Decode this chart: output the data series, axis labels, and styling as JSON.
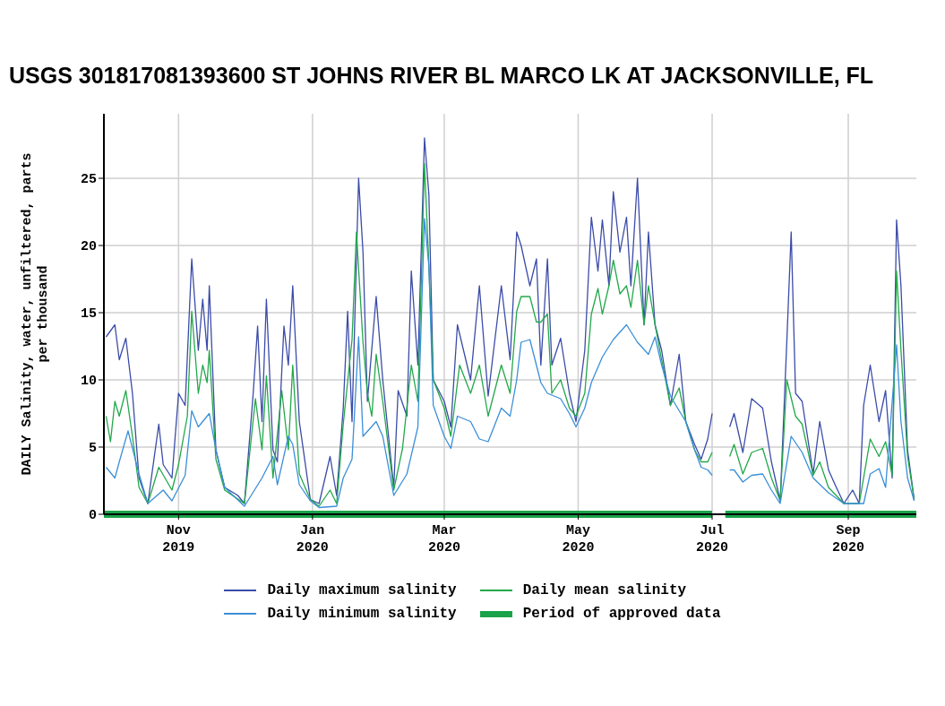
{
  "chart_data": {
    "type": "line",
    "title": "USGS 301817081393600 ST JOHNS RIVER BL MARCO LK AT JACKSONVILLE, FL",
    "ylabel": "DAILY Salinity, water, unfiltered, parts per thousand",
    "xlim": [
      "2019-09-28",
      "2020-10-02"
    ],
    "xticks": [
      {
        "value": "2019-11-01",
        "label": "Nov 2019"
      },
      {
        "value": "2020-01-01",
        "label": "Jan 2020"
      },
      {
        "value": "2020-03-01",
        "label": "Mar 2020"
      },
      {
        "value": "2020-05-01",
        "label": "May 2020"
      },
      {
        "value": "2020-07-01",
        "label": "Jul 2020"
      },
      {
        "value": "2020-09-01",
        "label": "Sep 2020"
      }
    ],
    "ylim": [
      0,
      29.8
    ],
    "yticks": [
      0,
      5,
      10,
      15,
      20,
      25
    ],
    "grid": true,
    "legend": "bottom",
    "series": [
      {
        "name": "Daily maximum salinity",
        "color": "#3b4ba8",
        "x": [
          "2019-09-29",
          "2019-10-03",
          "2019-10-05",
          "2019-10-08",
          "2019-10-11",
          "2019-10-14",
          "2019-10-18",
          "2019-10-23",
          "2019-10-25",
          "2019-10-29",
          "2019-11-01",
          "2019-11-04",
          "2019-11-07",
          "2019-11-10",
          "2019-11-12",
          "2019-11-14",
          "2019-11-15",
          "2019-11-18",
          "2019-11-22",
          "2019-11-28",
          "2019-12-01",
          "2019-12-05",
          "2019-12-07",
          "2019-12-09",
          "2019-12-11",
          "2019-12-14",
          "2019-12-16",
          "2019-12-19",
          "2019-12-21",
          "2019-12-23",
          "2019-12-26",
          "2019-12-31",
          "2020-01-04",
          "2020-01-09",
          "2020-01-12",
          "2020-01-15",
          "2020-01-17",
          "2020-01-19",
          "2020-01-22",
          "2020-01-24",
          "2020-01-26",
          "2020-01-30",
          "2020-02-02",
          "2020-02-07",
          "2020-02-09",
          "2020-02-13",
          "2020-02-15",
          "2020-02-18",
          "2020-02-21",
          "2020-02-23",
          "2020-02-25",
          "2020-03-01",
          "2020-03-04",
          "2020-03-07",
          "2020-03-13",
          "2020-03-17",
          "2020-03-21",
          "2020-03-27",
          "2020-03-31",
          "2020-04-03",
          "2020-04-05",
          "2020-04-09",
          "2020-04-12",
          "2020-04-14",
          "2020-04-17",
          "2020-04-19",
          "2020-04-23",
          "2020-04-27",
          "2020-04-30",
          "2020-05-04",
          "2020-05-07",
          "2020-05-10",
          "2020-05-12",
          "2020-05-15",
          "2020-05-17",
          "2020-05-20",
          "2020-05-23",
          "2020-05-25",
          "2020-05-28",
          "2020-05-31",
          "2020-06-02",
          "2020-06-05",
          "2020-06-08",
          "2020-06-12",
          "2020-06-16",
          "2020-06-19",
          "2020-06-23",
          "2020-06-26",
          "2020-06-29",
          "2020-07-01",
          "2020-07-04",
          "2020-07-09",
          "2020-07-11",
          "2020-07-15",
          "2020-07-19",
          "2020-07-24",
          "2020-07-28",
          "2020-08-01",
          "2020-08-04",
          "2020-08-06",
          "2020-08-08",
          "2020-08-11",
          "2020-08-16",
          "2020-08-19",
          "2020-08-23",
          "2020-08-26",
          "2020-08-30",
          "2020-09-03",
          "2020-09-06",
          "2020-09-08",
          "2020-09-11",
          "2020-09-15",
          "2020-09-18",
          "2020-09-21",
          "2020-09-23",
          "2020-09-25",
          "2020-09-28",
          "2020-10-01"
        ],
        "values": [
          13.2,
          14.1,
          11.5,
          13.1,
          9,
          2.7,
          0.8,
          6.7,
          3.7,
          2.7,
          9,
          8.1,
          19,
          12.2,
          16,
          12.2,
          17,
          4.8,
          2,
          1.4,
          0.8,
          9,
          14,
          6.9,
          16,
          4.8,
          3.9,
          14,
          11.1,
          17,
          6.9,
          1.1,
          0.8,
          4.3,
          1.4,
          7.9,
          15.1,
          6.9,
          25,
          19.5,
          8.4,
          16.2,
          10,
          2,
          9.2,
          7.3,
          18.1,
          11.1,
          28,
          23.8,
          10,
          8.4,
          6.5,
          14.1,
          10,
          17,
          8.8,
          17,
          11.5,
          21,
          20,
          17,
          19,
          11.1,
          19,
          11.1,
          13.1,
          9,
          6.9,
          12.2,
          22.1,
          18.1,
          21.9,
          17,
          24,
          19.5,
          22.1,
          17,
          25,
          14.1,
          21,
          14.1,
          12.2,
          8.1,
          11.9,
          6.9,
          5.2,
          4.1,
          5.6,
          7.5,
          null,
          6.5,
          7.5,
          4.6,
          8.6,
          7.9,
          3.9,
          1,
          12.8,
          21,
          9,
          8.4,
          3,
          6.9,
          3.3,
          2.2,
          0.8,
          1.8,
          0.8,
          8.1,
          11.1,
          6.9,
          9.2,
          2.7,
          21.9,
          17,
          4.8,
          1.1
        ]
      },
      {
        "name": "Daily mean salinity",
        "color": "#22a84a",
        "x": [
          "2019-09-29",
          "2019-10-01",
          "2019-10-03",
          "2019-10-05",
          "2019-10-08",
          "2019-10-11",
          "2019-10-14",
          "2019-10-18",
          "2019-10-23",
          "2019-10-29",
          "2019-11-01",
          "2019-11-05",
          "2019-11-07",
          "2019-11-10",
          "2019-11-12",
          "2019-11-14",
          "2019-11-15",
          "2019-11-18",
          "2019-11-22",
          "2019-12-01",
          "2019-12-06",
          "2019-12-09",
          "2019-12-11",
          "2019-12-14",
          "2019-12-18",
          "2019-12-21",
          "2019-12-23",
          "2019-12-26",
          "2019-12-31",
          "2020-01-04",
          "2020-01-09",
          "2020-01-12",
          "2020-01-15",
          "2020-01-19",
          "2020-01-21",
          "2020-01-24",
          "2020-01-26",
          "2020-01-28",
          "2020-01-30",
          "2020-02-02",
          "2020-02-07",
          "2020-02-11",
          "2020-02-15",
          "2020-02-18",
          "2020-02-21",
          "2020-02-23",
          "2020-02-25",
          "2020-03-01",
          "2020-03-04",
          "2020-03-08",
          "2020-03-13",
          "2020-03-17",
          "2020-03-21",
          "2020-03-27",
          "2020-03-31",
          "2020-04-03",
          "2020-04-05",
          "2020-04-09",
          "2020-04-12",
          "2020-04-14",
          "2020-04-17",
          "2020-04-19",
          "2020-04-23",
          "2020-04-27",
          "2020-04-30",
          "2020-05-04",
          "2020-05-07",
          "2020-05-10",
          "2020-05-12",
          "2020-05-15",
          "2020-05-17",
          "2020-05-20",
          "2020-05-23",
          "2020-05-25",
          "2020-05-28",
          "2020-05-31",
          "2020-06-02",
          "2020-06-05",
          "2020-06-08",
          "2020-06-12",
          "2020-06-16",
          "2020-06-19",
          "2020-06-23",
          "2020-06-26",
          "2020-06-29",
          "2020-07-01",
          "2020-07-04",
          "2020-07-09",
          "2020-07-11",
          "2020-07-15",
          "2020-07-19",
          "2020-07-24",
          "2020-07-28",
          "2020-08-01",
          "2020-08-04",
          "2020-08-08",
          "2020-08-11",
          "2020-08-16",
          "2020-08-19",
          "2020-08-23",
          "2020-08-30",
          "2020-09-06",
          "2020-09-11",
          "2020-09-15",
          "2020-09-18",
          "2020-09-21",
          "2020-09-23",
          "2020-09-25",
          "2020-09-28",
          "2020-10-01"
        ],
        "values": [
          7.3,
          5.4,
          8.4,
          7.3,
          9.2,
          5.8,
          2,
          0.8,
          3.5,
          1.8,
          3.7,
          7.3,
          15.1,
          9,
          11.1,
          9.8,
          12.2,
          4.1,
          1.8,
          0.8,
          8.6,
          4.8,
          10.3,
          2.7,
          9.2,
          4.8,
          11.1,
          3,
          1.1,
          0.6,
          1.8,
          0.8,
          6.7,
          13,
          21,
          12.8,
          9,
          7.3,
          11.9,
          8.4,
          1.8,
          4.9,
          11.1,
          8.4,
          26.1,
          18.5,
          10,
          7.9,
          5.8,
          11.1,
          9,
          11.1,
          7.3,
          11.1,
          9,
          15.1,
          16.2,
          16.2,
          14.3,
          14.3,
          14.9,
          9,
          10,
          7.9,
          7.3,
          9,
          14.9,
          16.8,
          14.9,
          17,
          18.9,
          16.4,
          17,
          15.4,
          18.9,
          14.1,
          17,
          14.1,
          11.5,
          8.1,
          9.4,
          6.9,
          4.8,
          3.9,
          3.9,
          4.6,
          null,
          4.3,
          5.2,
          3,
          4.6,
          4.9,
          2.7,
          1,
          10,
          7.3,
          6.7,
          2.9,
          3.9,
          2,
          0.8,
          0.8,
          5.6,
          4.3,
          5.4,
          2.9,
          18.1,
          12.2,
          4.3,
          1.1
        ]
      },
      {
        "name": "Daily minimum salinity",
        "color": "#3a8fd8",
        "x": [
          "2019-09-29",
          "2019-10-03",
          "2019-10-05",
          "2019-10-09",
          "2019-10-14",
          "2019-10-18",
          "2019-10-25",
          "2019-10-29",
          "2019-11-04",
          "2019-11-07",
          "2019-11-10",
          "2019-11-15",
          "2019-11-18",
          "2019-11-22",
          "2019-12-01",
          "2019-12-09",
          "2019-12-14",
          "2019-12-16",
          "2019-12-21",
          "2019-12-23",
          "2019-12-26",
          "2019-12-31",
          "2020-01-04",
          "2020-01-12",
          "2020-01-15",
          "2020-01-19",
          "2020-01-22",
          "2020-01-24",
          "2020-01-30",
          "2020-02-02",
          "2020-02-07",
          "2020-02-13",
          "2020-02-18",
          "2020-02-21",
          "2020-02-23",
          "2020-02-25",
          "2020-03-01",
          "2020-03-04",
          "2020-03-07",
          "2020-03-13",
          "2020-03-17",
          "2020-03-21",
          "2020-03-27",
          "2020-03-31",
          "2020-04-03",
          "2020-04-05",
          "2020-04-09",
          "2020-04-14",
          "2020-04-17",
          "2020-04-23",
          "2020-04-27",
          "2020-04-30",
          "2020-05-04",
          "2020-05-07",
          "2020-05-12",
          "2020-05-17",
          "2020-05-23",
          "2020-05-28",
          "2020-06-02",
          "2020-06-05",
          "2020-06-08",
          "2020-06-12",
          "2020-06-16",
          "2020-06-19",
          "2020-06-23",
          "2020-06-26",
          "2020-06-29",
          "2020-07-01",
          "2020-07-04",
          "2020-07-09",
          "2020-07-11",
          "2020-07-15",
          "2020-07-19",
          "2020-07-24",
          "2020-07-28",
          "2020-08-01",
          "2020-08-06",
          "2020-08-11",
          "2020-08-16",
          "2020-08-23",
          "2020-08-30",
          "2020-09-08",
          "2020-09-11",
          "2020-09-15",
          "2020-09-18",
          "2020-09-23",
          "2020-09-25",
          "2020-09-28",
          "2020-10-01"
        ],
        "values": [
          3.5,
          2.7,
          3.9,
          6.2,
          3,
          0.8,
          1.8,
          1,
          2.9,
          7.7,
          6.5,
          7.5,
          4.8,
          2,
          0.6,
          2.7,
          4.3,
          2.2,
          5.8,
          5.2,
          2.2,
          1,
          0.5,
          0.6,
          2.7,
          4.1,
          13.2,
          5.8,
          6.9,
          5.8,
          1.4,
          3,
          6.5,
          22,
          18.5,
          8.1,
          5.8,
          4.9,
          7.3,
          6.9,
          5.6,
          5.4,
          7.9,
          7.3,
          10,
          12.8,
          13,
          9.8,
          9,
          8.6,
          7.5,
          6.5,
          7.9,
          9.8,
          11.7,
          13,
          14.1,
          12.8,
          11.9,
          13.2,
          11.1,
          8.8,
          7.7,
          6.9,
          4.8,
          3.5,
          3.3,
          2.9,
          null,
          3.3,
          3.3,
          2.4,
          2.9,
          3,
          1.8,
          0.8,
          5.8,
          4.6,
          2.7,
          1.6,
          0.8,
          0.8,
          3,
          3.4,
          2,
          12.6,
          6.9,
          2.7,
          1
        ]
      },
      {
        "name": "Period of approved data",
        "color": "#1aa34a",
        "x": [
          "2019-09-28",
          "2020-07-01",
          "2020-07-04",
          "2020-07-07",
          "2020-10-02"
        ],
        "values": [
          0,
          0,
          null,
          0,
          0
        ]
      }
    ]
  }
}
